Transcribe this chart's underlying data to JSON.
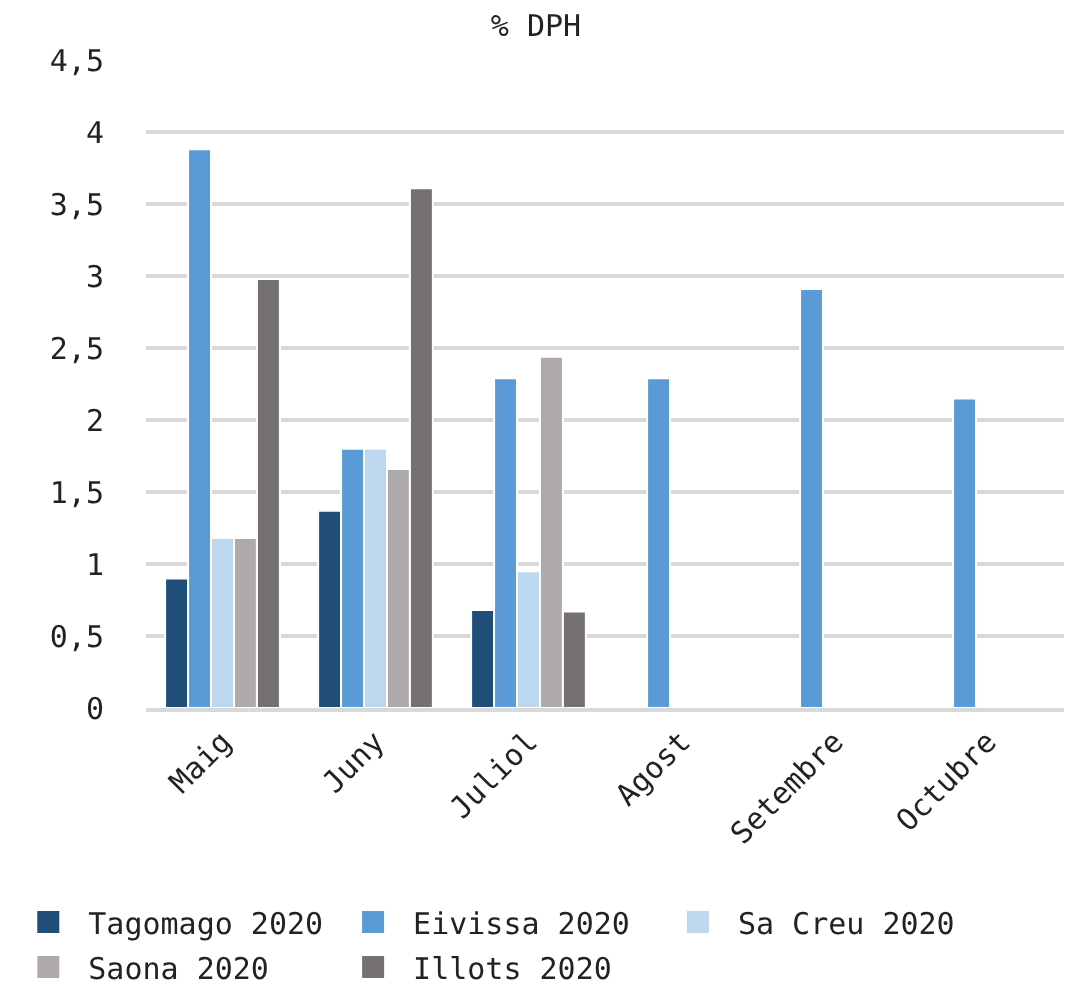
{
  "chart_data": {
    "type": "bar",
    "title": "% DPH",
    "categories": [
      "Maig",
      "Juny",
      "Juliol",
      "Agost",
      "Setembre",
      "Octubre"
    ],
    "series": [
      {
        "name": "Tagomago 2020",
        "color": "#1f4e79",
        "values": [
          0.9,
          1.37,
          0.68,
          null,
          null,
          null
        ]
      },
      {
        "name": "Eivissa 2020",
        "color": "#5b9bd5",
        "values": [
          3.88,
          1.8,
          2.29,
          2.29,
          2.91,
          2.15
        ]
      },
      {
        "name": "Sa Creu 2020",
        "color": "#bdd7ee",
        "values": [
          1.18,
          1.8,
          0.95,
          null,
          null,
          null
        ]
      },
      {
        "name": "Saona 2020",
        "color": "#aeaaaa",
        "values": [
          1.18,
          1.66,
          2.44,
          null,
          null,
          null
        ]
      },
      {
        "name": "Illots 2020",
        "color": "#767171",
        "values": [
          2.98,
          3.61,
          0.67,
          null,
          null,
          null
        ]
      }
    ],
    "ylim": [
      0,
      4.5
    ],
    "yticks": [
      {
        "value": 0,
        "label": "0"
      },
      {
        "value": 0.5,
        "label": "0,5"
      },
      {
        "value": 1,
        "label": "1"
      },
      {
        "value": 1.5,
        "label": "1,5"
      },
      {
        "value": 2,
        "label": "2"
      },
      {
        "value": 2.5,
        "label": "2,5"
      },
      {
        "value": 3,
        "label": "3"
      },
      {
        "value": 3.5,
        "label": "3,5"
      },
      {
        "value": 4,
        "label": "4"
      },
      {
        "value": 4.5,
        "label": "4,5"
      }
    ],
    "grid": "y",
    "legend": "bottom"
  }
}
